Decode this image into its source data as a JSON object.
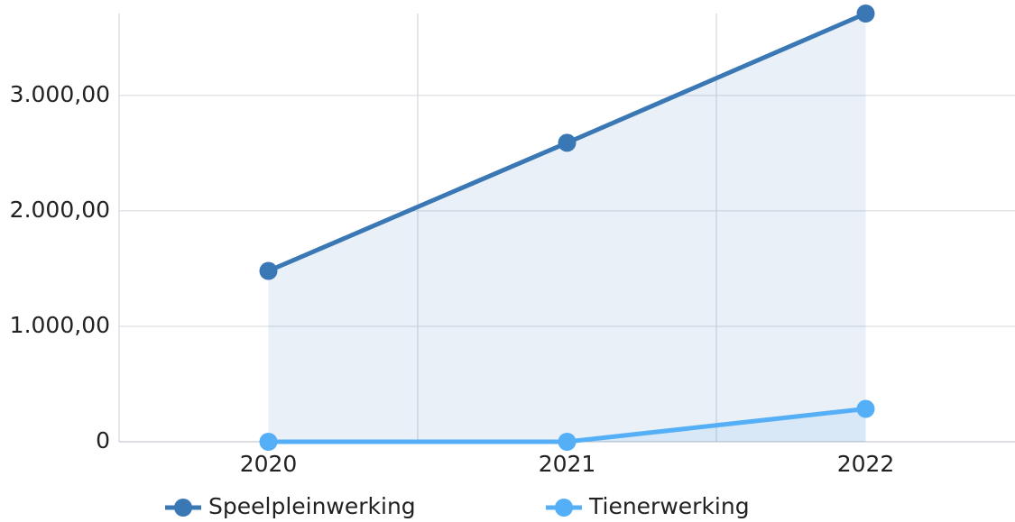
{
  "chart_data": {
    "type": "line",
    "categories": [
      "2020",
      "2021",
      "2022"
    ],
    "series": [
      {
        "name": "Speelpleinwerking",
        "color": "#3a78b5",
        "values": [
          1480,
          2590,
          3710
        ]
      },
      {
        "name": "Tienerwerking",
        "color": "#55aff7",
        "values": [
          0,
          0,
          285
        ]
      }
    ],
    "ylim": [
      0,
      3710
    ],
    "yticks": [
      0,
      {
        "value": 1000,
        "label": "1.000,00"
      },
      {
        "value": 2000,
        "label": "2.000,00"
      },
      {
        "value": 3000,
        "label": "3.000,00"
      }
    ],
    "grid": true,
    "legend": "bottom"
  }
}
